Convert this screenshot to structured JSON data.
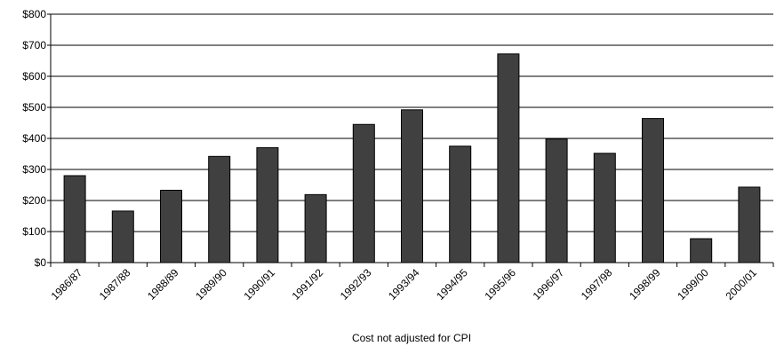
{
  "chart_data": {
    "type": "bar",
    "categories": [
      "1986/87",
      "1987/88",
      "1988/89",
      "1989/90",
      "1990/91",
      "1991/92",
      "1992/93",
      "1993/94",
      "1994/95",
      "1995/96",
      "1996/97",
      "1997/98",
      "1998/99",
      "1999/00",
      "2000/01"
    ],
    "values": [
      280,
      166,
      233,
      342,
      370,
      219,
      445,
      492,
      375,
      672,
      398,
      352,
      464,
      77,
      243
    ],
    "title": "",
    "xlabel": "Cost not adjusted for CPI",
    "ylabel": "",
    "ylim": [
      0,
      800
    ],
    "yticks": [
      "$0",
      "$100",
      "$200",
      "$300",
      "$400",
      "$500",
      "$600",
      "$700",
      "$800"
    ],
    "grid": true,
    "legend": "none",
    "bar_color": "#404040"
  }
}
